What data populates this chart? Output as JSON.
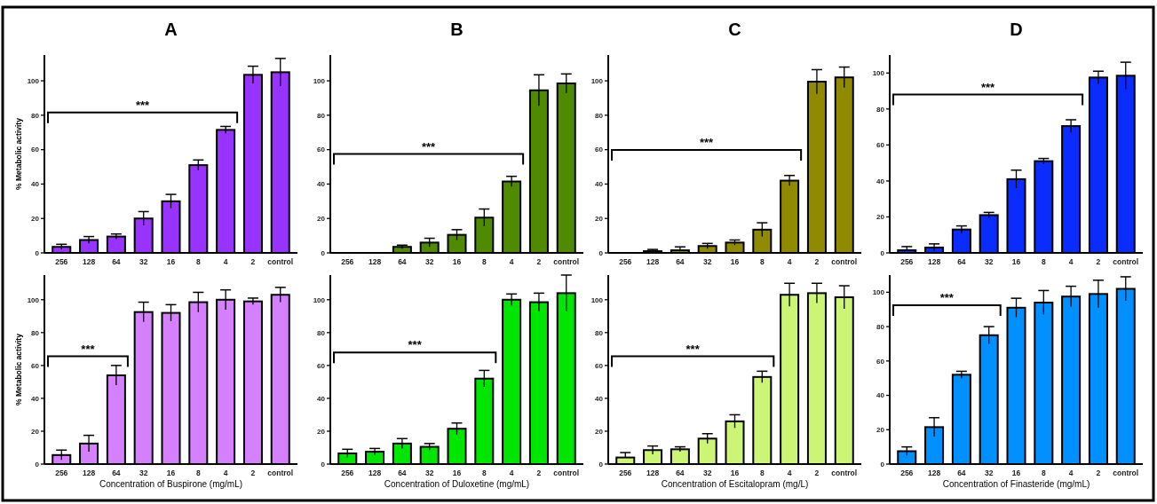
{
  "chart_data": [
    {
      "type": "bar",
      "title": "A",
      "ylabel": "% Metabolic activity",
      "categories": [
        "256",
        "128",
        "64",
        "32",
        "16",
        "8",
        "4",
        "2",
        "control"
      ],
      "values": [
        3.5,
        7.5,
        9.5,
        20,
        30,
        51,
        71.5,
        103.5,
        105
      ],
      "errors": [
        1.5,
        2,
        1.5,
        4,
        4,
        3,
        2,
        5,
        8
      ],
      "color": "#9933ff",
      "ylim": [
        0,
        115
      ],
      "yticks": [
        0,
        20,
        40,
        60,
        80,
        100
      ],
      "annotations": [
        "***"
      ]
    },
    {
      "type": "bar",
      "title": "B",
      "categories": [
        "256",
        "128",
        "64",
        "32",
        "16",
        "8",
        "4",
        "2",
        "control"
      ],
      "values": [
        0,
        0,
        3.5,
        6,
        10.5,
        20.5,
        41.5,
        94.5,
        98.5
      ],
      "errors": [
        null,
        null,
        1,
        2.5,
        3,
        5,
        3,
        9,
        5.5
      ],
      "color": "#4f8a00",
      "ylim": [
        0,
        115
      ],
      "yticks": [
        0,
        20,
        40,
        60,
        80,
        100
      ],
      "annotations": [
        "***"
      ]
    },
    {
      "type": "bar",
      "title": "C",
      "categories": [
        "256",
        "128",
        "64",
        "32",
        "16",
        "8",
        "4",
        "2",
        "control"
      ],
      "values": [
        0,
        1,
        1.5,
        4,
        6,
        13.5,
        42,
        99.5,
        102
      ],
      "errors": [
        null,
        [
          1,
          2
        ],
        [
          1.5,
          3.5
        ],
        1.5,
        1.5,
        4,
        3,
        7,
        6
      ],
      "color": "#8f8a00",
      "ylim": [
        0,
        115
      ],
      "yticks": [
        0,
        20,
        40,
        60,
        80,
        100
      ],
      "annotations": [
        "***"
      ]
    },
    {
      "type": "bar",
      "title": "D",
      "categories": [
        "256",
        "128",
        "64",
        "32",
        "16",
        "8",
        "4",
        "2",
        "control"
      ],
      "values": [
        1.5,
        3,
        13,
        21,
        41,
        51,
        70.5,
        97.5,
        98.5
      ],
      "errors": [
        [
          1.5,
          3.5
        ],
        2,
        2,
        1.5,
        5,
        1.5,
        3.5,
        3.5,
        7.5
      ],
      "color": "#0a2cff",
      "ylim": [
        0,
        110
      ],
      "yticks": [
        0,
        20,
        40,
        60,
        80,
        100
      ],
      "annotations": [
        "***"
      ]
    },
    {
      "type": "bar",
      "xlabel": "Concentration of  Buspirone (mg/mL)",
      "ylabel": "% Metabolic activity",
      "categories": [
        "256",
        "128",
        "64",
        "32",
        "16",
        "8",
        "4",
        "2",
        "control"
      ],
      "values": [
        5.5,
        12.5,
        54,
        92.5,
        92,
        98.5,
        100,
        99,
        103
      ],
      "errors": [
        3,
        5,
        6,
        6,
        5,
        6,
        6,
        2,
        4.5
      ],
      "color": "#d580ff",
      "ylim": [
        0,
        115
      ],
      "yticks": [
        0,
        20,
        40,
        60,
        80,
        100
      ],
      "annotations": [
        "***"
      ]
    },
    {
      "type": "bar",
      "xlabel": "Concentration of  Duloxetine (mg/mL)",
      "categories": [
        "256",
        "128",
        "64",
        "32",
        "16",
        "8",
        "4",
        "2",
        "control"
      ],
      "values": [
        6.5,
        7.5,
        12.5,
        10.5,
        21.5,
        52,
        100,
        98.5,
        104
      ],
      "errors": [
        2.5,
        2,
        3,
        2,
        3.5,
        5,
        3.5,
        5.5,
        11
      ],
      "color": "#00e600",
      "ylim": [
        0,
        115
      ],
      "yticks": [
        0,
        20,
        40,
        60,
        80,
        100
      ],
      "annotations": [
        "***"
      ]
    },
    {
      "type": "bar",
      "xlabel": "Concentration of Escitalopram (mg/L)",
      "categories": [
        "256",
        "128",
        "64",
        "32",
        "16",
        "8",
        "4",
        "2",
        "control"
      ],
      "values": [
        4,
        8.5,
        9,
        15.5,
        26,
        53,
        103,
        104,
        101.5
      ],
      "errors": [
        [
          4,
          7
        ],
        2.5,
        1.5,
        3,
        4,
        3.5,
        7,
        6,
        7
      ],
      "color": "#ccf576",
      "ylim": [
        0,
        115
      ],
      "yticks": [
        0,
        20,
        40,
        60,
        80,
        100
      ],
      "annotations": [
        "***"
      ]
    },
    {
      "type": "bar",
      "xlabel": "Concentration of Finasteride (mg/mL)",
      "categories": [
        "256",
        "128",
        "64",
        "32",
        "16",
        "8",
        "4",
        "2",
        "control"
      ],
      "values": [
        7.5,
        21.5,
        52,
        75,
        91,
        94,
        97.5,
        99,
        102
      ],
      "errors": [
        2.5,
        5.5,
        2,
        5,
        5.5,
        7,
        6,
        8,
        7
      ],
      "color": "#0090ff",
      "ylim": [
        0,
        110
      ],
      "yticks": [
        0,
        20,
        40,
        60,
        80,
        100
      ],
      "annotations": [
        "***"
      ]
    }
  ]
}
